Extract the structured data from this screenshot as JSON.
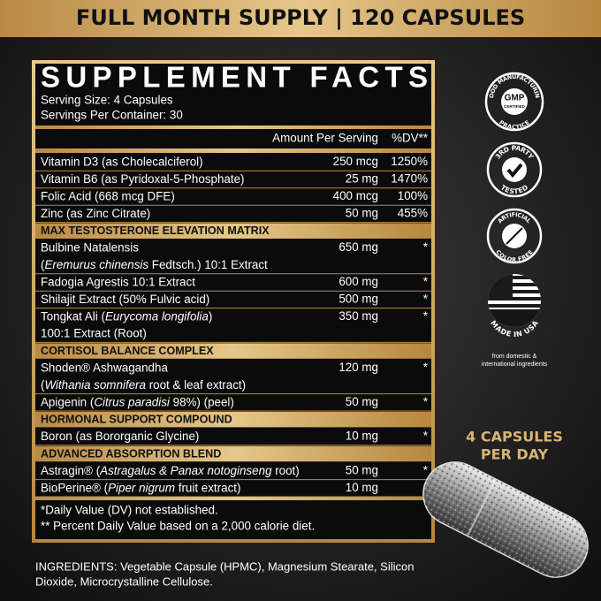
{
  "banner": "FULL MONTH SUPPLY | 120 CAPSULES",
  "facts": {
    "title": "SUPPLEMENT FACTS",
    "serving_size": "Serving Size: 4 Capsules",
    "servings_per_container": "Servings Per Container: 30",
    "column_headers": [
      "Amount Per Serving",
      "%DV**"
    ],
    "rows": [
      {
        "name": [
          [
            "Vitamin D3 (as Cholecalciferol)"
          ]
        ],
        "amount": "250 mcg",
        "dv": "1250%"
      },
      {
        "name": [
          [
            "Vitamin B6 (as Pyridoxal-5-Phosphate)"
          ]
        ],
        "amount": "25 mg",
        "dv": "1470%"
      },
      {
        "name": [
          [
            "Folic Acid (668 mcg DFE)"
          ]
        ],
        "amount": "400 mcg",
        "dv": "100%"
      },
      {
        "name": [
          [
            "Zinc (as Zinc Citrate)"
          ]
        ],
        "amount": "50 mg",
        "dv": "455%"
      },
      {
        "section": "MAX TESTOSTERONE ELEVATION MATRIX"
      },
      {
        "name": [
          [
            "Bulbine Natalensis"
          ],
          [
            "(",
            {
              "italic": "Eremurus chinensis"
            },
            " Fedtsch.) 10:1 Extract"
          ]
        ],
        "amount": "650 mg",
        "dv": "*"
      },
      {
        "name": [
          [
            "Fadogia Agrestis 10:1 Extract"
          ]
        ],
        "amount": "600 mg",
        "dv": "*"
      },
      {
        "name": [
          [
            "Shilajit Extract (50% Fulvic acid)"
          ]
        ],
        "amount": "500 mg",
        "dv": "*"
      },
      {
        "name": [
          [
            "Tongkat Ali (",
            {
              "italic": "Eurycoma longifolia"
            },
            ")"
          ],
          [
            "100:1 Extract (Root)"
          ]
        ],
        "amount": "350 mg",
        "dv": "*"
      },
      {
        "section": "CORTISOL BALANCE COMPLEX"
      },
      {
        "name": [
          [
            "Shoden® Ashwagandha"
          ],
          [
            "(",
            {
              "italic": "Withania somnifera"
            },
            " root & leaf extract)"
          ]
        ],
        "amount": "120 mg",
        "dv": "*"
      },
      {
        "name": [
          [
            "Apigenin (",
            {
              "italic": "Citrus paradisi"
            },
            " 98%) (peel)"
          ]
        ],
        "amount": "50 mg",
        "dv": "*"
      },
      {
        "section": "HORMONAL SUPPORT COMPOUND"
      },
      {
        "name": [
          [
            "Boron (as Bororganic Glycine)"
          ]
        ],
        "amount": "10 mg",
        "dv": "*"
      },
      {
        "section": "ADVANCED ABSORPTION BLEND"
      },
      {
        "name": [
          [
            "Astragin® (",
            {
              "italic": "Astragalus & Panax notoginseng"
            },
            " root)"
          ]
        ],
        "amount": "50 mg",
        "dv": "*"
      },
      {
        "name": [
          [
            "BioPerine® (",
            {
              "italic": "Piper nigrum"
            },
            " fruit extract)"
          ]
        ],
        "amount": "10 mg"
      }
    ],
    "footnotes": [
      "*Daily Value (DV) not established.",
      "** Percent Daily Value based on a 2,000 calorie diet."
    ]
  },
  "badges": {
    "gmp": [
      "GOOD MANUFACTURING",
      "GMP",
      "CERTIFIED",
      "PRACTICE"
    ],
    "third_party": [
      "3RD PARTY",
      "TESTED"
    ],
    "color_free": [
      "ARTIFICIAL",
      "COLOR FREE"
    ],
    "usa": [
      "MADE IN USA"
    ],
    "origin_note": [
      "from domestic &",
      "international ingredients"
    ]
  },
  "capsules_per_day": [
    "4 CAPSULES",
    "PER DAY"
  ],
  "ingredients": [
    "INGREDIENTS: Vegetable Capsule (HPMC), Magnesium Stearate, Silicon",
    "Dioxide, Microcrystalline Cellulose."
  ]
}
